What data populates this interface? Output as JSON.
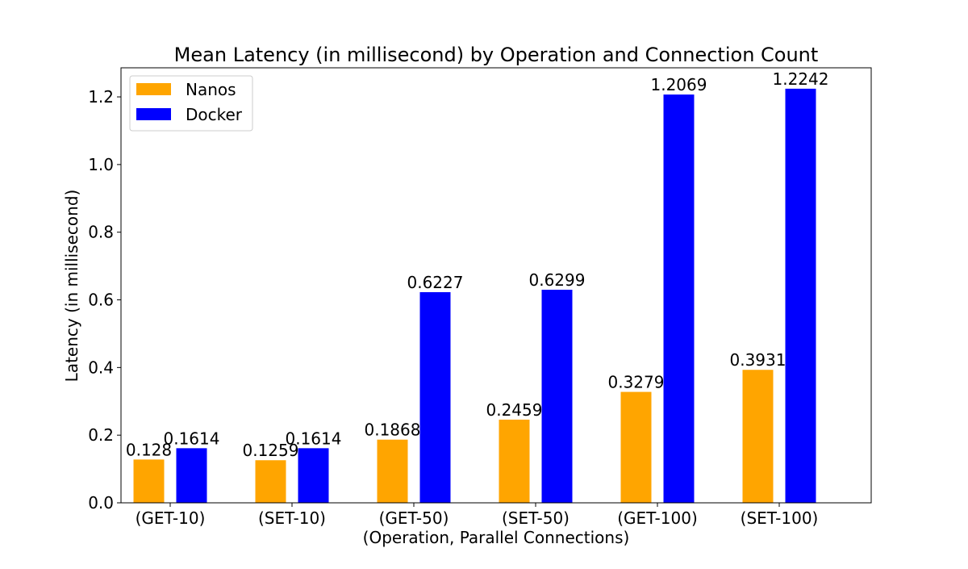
{
  "chart_data": {
    "type": "bar",
    "title": "Mean Latency (in millisecond) by Operation and Connection Count",
    "xlabel": "(Operation, Parallel Connections)",
    "ylabel": "Latency (in millisecond)",
    "categories": [
      "(GET-10)",
      "(SET-10)",
      "(GET-50)",
      "(SET-50)",
      "(GET-100)",
      "(SET-100)"
    ],
    "series": [
      {
        "name": "Nanos",
        "color": "#FFA500",
        "values": [
          0.128,
          0.1259,
          0.1868,
          0.2459,
          0.3279,
          0.3931
        ],
        "labels": [
          "0.128",
          "0.1259",
          "0.1868",
          "0.2459",
          "0.3279",
          "0.3931"
        ]
      },
      {
        "name": "Docker",
        "color": "#0000FF",
        "values": [
          0.1614,
          0.1614,
          0.6227,
          0.6299,
          1.2069,
          1.2242
        ],
        "labels": [
          "0.1614",
          "0.1614",
          "0.6227",
          "0.6299",
          "1.2069",
          "1.2242"
        ]
      }
    ],
    "ylim": [
      0,
      1.286
    ],
    "yticks": [
      0.0,
      0.2,
      0.4,
      0.6,
      0.8,
      1.0,
      1.2
    ],
    "ytick_labels": [
      "0.0",
      "0.2",
      "0.4",
      "0.6",
      "0.8",
      "1.0",
      "1.2"
    ],
    "grid": false,
    "legend": "top-left"
  }
}
